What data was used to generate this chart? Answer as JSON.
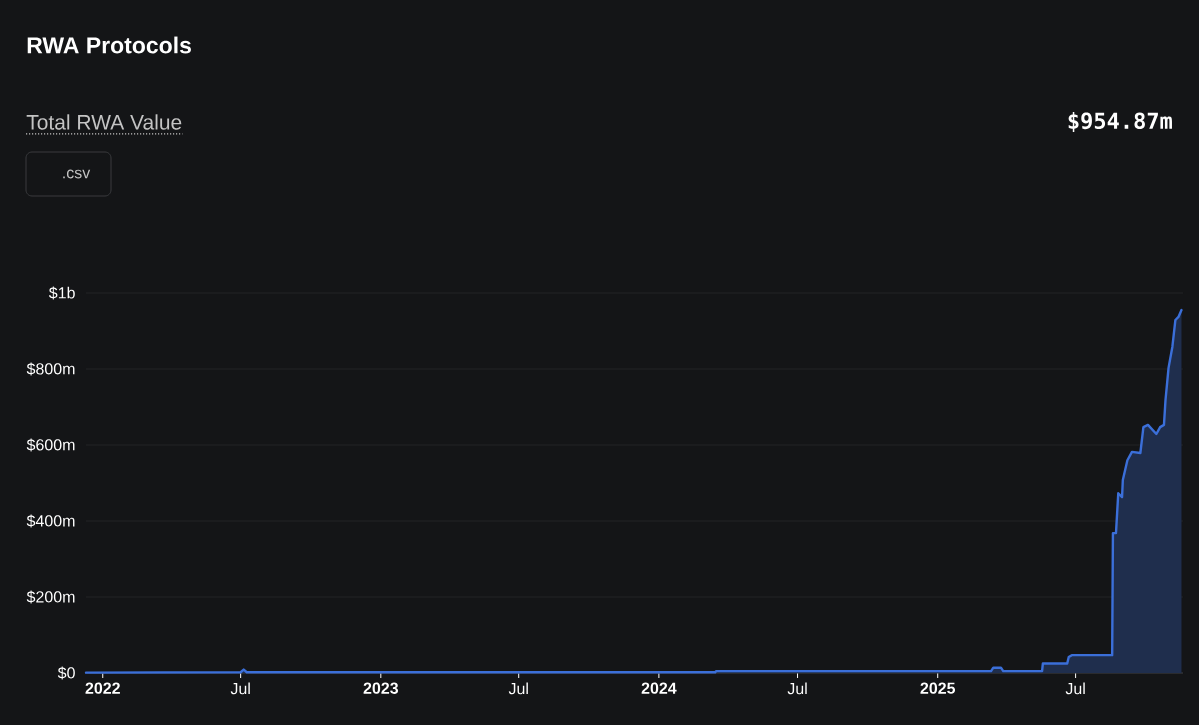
{
  "chart_data": {
    "type": "area",
    "title": "RWA Protocols",
    "annotations": [
      "Total RWA Value",
      "$954.87m",
      ".csv"
    ],
    "color": "#3b6fd9",
    "x": [
      "2021-12-10",
      "2022-07-01",
      "2022-07-05",
      "2022-07-09",
      "2024-03-15",
      "2024-03-16",
      "2025-03-12",
      "2025-03-15",
      "2025-03-25",
      "2025-03-28",
      "2025-05-18",
      "2025-05-19",
      "2025-06-20",
      "2025-06-22",
      "2025-06-26",
      "2025-08-18",
      "2025-08-19",
      "2025-08-23",
      "2025-08-26",
      "2025-08-31",
      "2025-09-01",
      "2025-09-07",
      "2025-09-13",
      "2025-09-24",
      "2025-09-28",
      "2025-10-04",
      "2025-10-15",
      "2025-10-20",
      "2025-10-25",
      "2025-10-27",
      "2025-10-31",
      "2025-11-05",
      "2025-11-09",
      "2025-11-13",
      "2025-11-17"
    ],
    "values": [
      1000000.0,
      2000000.0,
      9000000.0,
      2000000.0,
      2000000.0,
      5000000.0,
      5000000.0,
      14000000.0,
      14000000.0,
      5000000.0,
      5000000.0,
      25000000.0,
      25000000.0,
      42000000.0,
      47000000.0,
      47000000.0,
      368000000.0,
      368000000.0,
      473000000.0,
      463000000.0,
      508000000.0,
      560000000.0,
      582000000.0,
      579000000.0,
      647000000.0,
      653000000.0,
      629000000.0,
      647000000.0,
      653000000.0,
      718000000.0,
      803000000.0,
      858000000.0,
      929000000.0,
      937000000.0,
      955000000.0
    ],
    "xlim": [
      "2021-12-10",
      "2025-11-19"
    ],
    "xticks": [
      {
        "value": "2022-01-01",
        "label": "2022"
      },
      {
        "value": "2022-07-01",
        "label": "Jul"
      },
      {
        "value": "2023-01-01",
        "label": "2023"
      },
      {
        "value": "2023-07-01",
        "label": "Jul"
      },
      {
        "value": "2024-01-01",
        "label": "2024"
      },
      {
        "value": "2024-07-01",
        "label": "Jul"
      },
      {
        "value": "2025-01-01",
        "label": "2025"
      },
      {
        "value": "2025-07-01",
        "label": "Jul"
      }
    ],
    "ylim": [
      0,
      1000000000.0
    ],
    "yticks": [
      {
        "value": 0,
        "label": "$0"
      },
      {
        "value": 200000000.0,
        "label": "$200m"
      },
      {
        "value": 400000000.0,
        "label": "$400m"
      },
      {
        "value": 600000000.0,
        "label": "$600m"
      },
      {
        "value": 800000000.0,
        "label": "$800m"
      },
      {
        "value": 1000000000.0,
        "label": "$1b"
      }
    ],
    "grid": "y"
  }
}
